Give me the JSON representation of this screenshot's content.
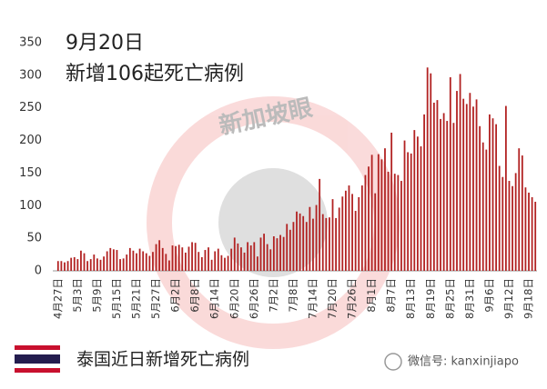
{
  "chart_data": {
    "type": "bar",
    "title": "9月20日",
    "subtitle": "新增106起死亡病例",
    "color": "#b22222",
    "ylim": [
      0,
      350
    ],
    "yticks": [
      0,
      50,
      100,
      150,
      200,
      250,
      300,
      350
    ],
    "grid": false,
    "categories": [
      "4月27日",
      null,
      null,
      null,
      null,
      null,
      "5月3日",
      null,
      null,
      null,
      null,
      null,
      "5月9日",
      null,
      null,
      null,
      null,
      null,
      "5月15日",
      null,
      null,
      null,
      null,
      null,
      "5月21日",
      null,
      null,
      null,
      null,
      null,
      "5月27日",
      null,
      null,
      null,
      null,
      null,
      "6月2日",
      null,
      null,
      null,
      null,
      null,
      "6月8日",
      null,
      null,
      null,
      null,
      null,
      "6月14日",
      null,
      null,
      null,
      null,
      null,
      "6月20日",
      null,
      null,
      null,
      null,
      null,
      "6月26日",
      null,
      null,
      null,
      null,
      null,
      "7月2日",
      null,
      null,
      null,
      null,
      null,
      "7月8日",
      null,
      null,
      null,
      null,
      null,
      "7月14日",
      null,
      null,
      null,
      null,
      null,
      "7月20日",
      null,
      null,
      null,
      null,
      null,
      "7月26日",
      null,
      null,
      null,
      null,
      null,
      "8月1日",
      null,
      null,
      null,
      null,
      null,
      "8月7日",
      null,
      null,
      null,
      null,
      null,
      "8月13日",
      null,
      null,
      null,
      null,
      null,
      "8月19日",
      null,
      null,
      null,
      null,
      null,
      "8月25日",
      null,
      null,
      null,
      null,
      null,
      "8月31日",
      null,
      null,
      null,
      null,
      null,
      "9月6日",
      null,
      null,
      null,
      null,
      null,
      "9月12日",
      null,
      null,
      null,
      null,
      null,
      "9月18日",
      null,
      null
    ],
    "values": [
      15,
      15,
      13,
      15,
      20,
      21,
      18,
      31,
      27,
      15,
      18,
      25,
      19,
      17,
      22,
      30,
      35,
      33,
      32,
      18,
      19,
      25,
      35,
      31,
      27,
      34,
      30,
      27,
      23,
      29,
      41,
      47,
      35,
      26,
      16,
      39,
      38,
      40,
      36,
      28,
      37,
      44,
      43,
      29,
      21,
      32,
      36,
      17,
      30,
      34,
      24,
      20,
      23,
      34,
      51,
      42,
      36,
      28,
      44,
      39,
      44,
      22,
      51,
      57,
      41,
      33,
      53,
      50,
      55,
      52,
      72,
      63,
      75,
      91,
      88,
      84,
      75,
      98,
      80,
      101,
      141,
      87,
      81,
      82,
      110,
      81,
      97,
      114,
      123,
      131,
      118,
      92,
      113,
      131,
      147,
      160,
      178,
      119,
      179,
      171,
      188,
      152,
      212,
      149,
      147,
      138,
      200,
      182,
      180,
      216,
      206,
      191,
      240,
      312,
      303,
      258,
      262,
      233,
      242,
      230,
      297,
      227,
      276,
      302,
      264,
      256,
      273,
      252,
      263,
      222,
      197,
      186,
      240,
      234,
      225,
      161,
      144,
      253,
      138,
      130,
      150,
      188,
      177,
      128,
      120,
      113,
      106
    ]
  },
  "footer": "泰国近日新增死亡病例",
  "watermark": "新加坡眼",
  "wechat": "微信号: kanxinjiapo"
}
